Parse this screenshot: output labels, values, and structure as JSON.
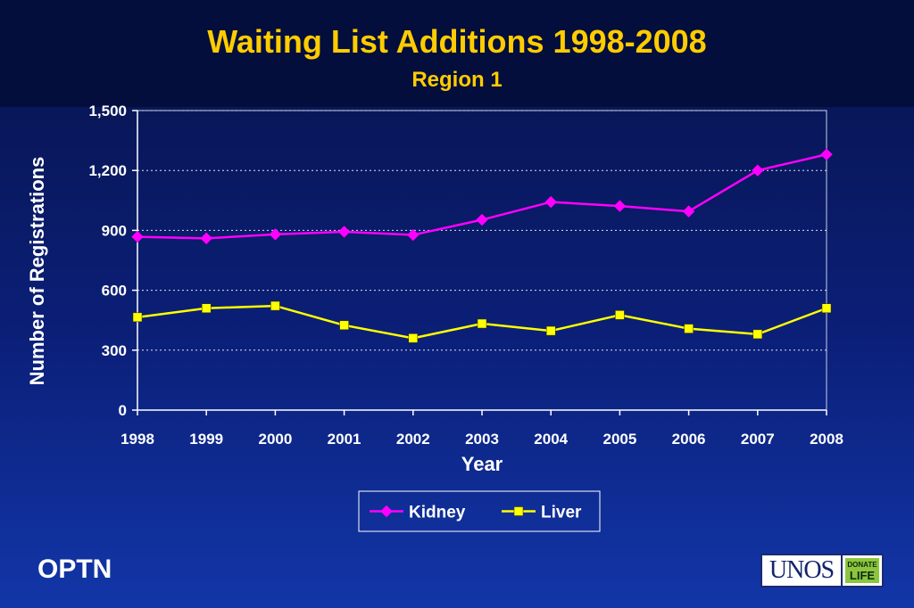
{
  "header": {
    "title": "Waiting List Additions 1998-2008",
    "subtitle": "Region 1"
  },
  "footer": {
    "org_label": "OPTN",
    "logo_text": "UNOS",
    "badge_top": "DONATE",
    "badge_bottom": "LIFE"
  },
  "colors": {
    "kidney": "#ff00ff",
    "liver": "#ffff00",
    "title": "#ffcc00",
    "axis": "#ffffff"
  },
  "chart_data": {
    "type": "line",
    "title": "Waiting List Additions 1998-2008",
    "subtitle": "Region 1",
    "xlabel": "Year",
    "ylabel": "Number of Registrations",
    "x": [
      "1998",
      "1999",
      "2000",
      "2001",
      "2002",
      "2003",
      "2004",
      "2005",
      "2006",
      "2007",
      "2008"
    ],
    "ylim": [
      0,
      1500
    ],
    "yticks": [
      0,
      300,
      600,
      900,
      1200,
      1500
    ],
    "ytick_labels": [
      "0",
      "300",
      "600",
      "900",
      "1,200",
      "1,500"
    ],
    "grid": "horizontal-dotted",
    "legend_position": "bottom-center",
    "series": [
      {
        "name": "Kidney",
        "marker": "diamond",
        "values": [
          868,
          860,
          880,
          893,
          877,
          953,
          1042,
          1022,
          995,
          1200,
          1280
        ]
      },
      {
        "name": "Liver",
        "marker": "square",
        "values": [
          465,
          510,
          522,
          425,
          360,
          433,
          397,
          476,
          408,
          380,
          510
        ]
      }
    ]
  }
}
